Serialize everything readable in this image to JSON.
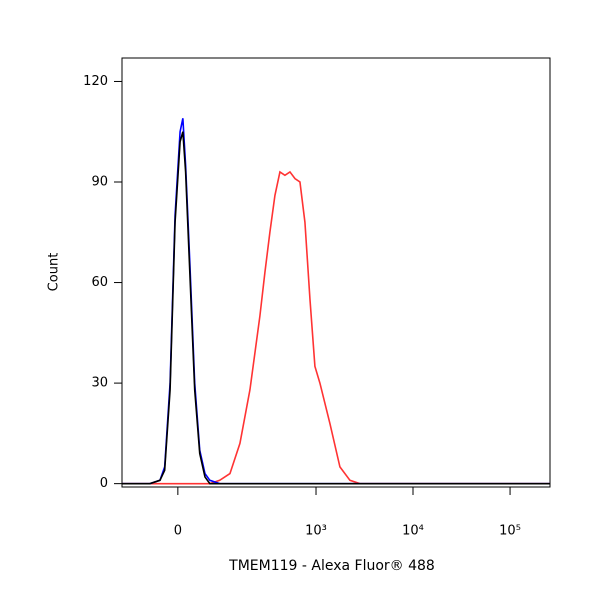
{
  "chart_data": {
    "type": "line",
    "x_label": "TMEM119 - Alexa Fluor® 488",
    "y_label": "Count",
    "xscale": "biexponential",
    "xlim": [
      -132,
      258000
    ],
    "ylim": [
      -1,
      127
    ],
    "xticks": [
      0,
      {
        "value": 1000,
        "label": "10³"
      },
      {
        "value": 10000,
        "label": "10⁴"
      },
      {
        "value": 100000,
        "label": "10⁵"
      }
    ],
    "yticks": [
      0,
      30,
      60,
      90,
      120
    ],
    "x": [
      -132,
      -54,
      -33,
      -24,
      -14,
      -5,
      4,
      9,
      14,
      22,
      31,
      41,
      52,
      63,
      88,
      119,
      156,
      202,
      259,
      293,
      331,
      374,
      422,
      476,
      537,
      606,
      682,
      768,
      866,
      974,
      1097,
      1390,
      1765,
      2240,
      2840,
      4570,
      24000,
      258000
    ],
    "series": [
      {
        "color": "#ff3333",
        "values": [
          0,
          0,
          0,
          0,
          0,
          0,
          0,
          0,
          0,
          0,
          0,
          0,
          0,
          0,
          1,
          3,
          12,
          28,
          50,
          63,
          75,
          86,
          93,
          92,
          93,
          91,
          90,
          78,
          55,
          35,
          30,
          18,
          5,
          1,
          0,
          0,
          0,
          0
        ]
      },
      {
        "color": "#0000ff",
        "values": [
          0,
          0,
          1,
          5,
          30,
          80,
          105,
          109,
          95,
          65,
          30,
          10,
          3,
          1,
          0,
          0,
          0,
          0,
          0,
          0,
          0,
          0,
          0,
          0,
          0,
          0,
          0,
          0,
          0,
          0,
          0,
          0,
          0,
          0,
          0,
          0,
          0,
          0
        ]
      },
      {
        "color": "#000000",
        "values": [
          0,
          0,
          1,
          4,
          28,
          78,
          102,
          105,
          93,
          62,
          28,
          9,
          2,
          0,
          0,
          0,
          0,
          0,
          0,
          0,
          0,
          0,
          0,
          0,
          0,
          0,
          0,
          0,
          0,
          0,
          0,
          0,
          0,
          0,
          0,
          0,
          0,
          0
        ]
      }
    ]
  }
}
